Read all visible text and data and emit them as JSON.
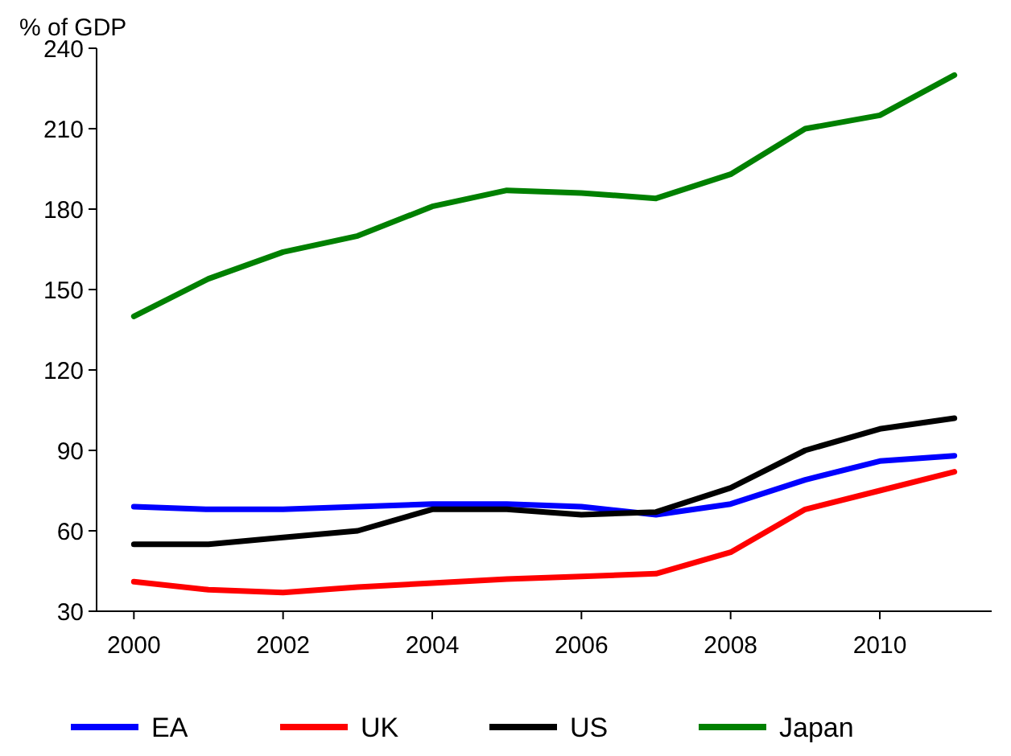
{
  "chart_data": {
    "type": "line",
    "ylabel": "% of GDP",
    "x": [
      2000,
      2001,
      2002,
      2003,
      2004,
      2005,
      2006,
      2007,
      2008,
      2009,
      2010,
      2011
    ],
    "xlim": [
      1999.5,
      2011.5
    ],
    "xticks": [
      2000,
      2002,
      2004,
      2006,
      2008,
      2010
    ],
    "ylim": [
      30,
      240
    ],
    "yticks": [
      30,
      60,
      90,
      120,
      150,
      180,
      210,
      240
    ],
    "legend": "bottom",
    "grid": false,
    "line_style": "solid",
    "marker": "none",
    "series": [
      {
        "name": "EA",
        "color": "#0000ff",
        "values": [
          69,
          68,
          68,
          69,
          70,
          70,
          69,
          66,
          70,
          79,
          86,
          88
        ]
      },
      {
        "name": "UK",
        "color": "#ff0000",
        "values": [
          41,
          38,
          37,
          39,
          40.5,
          42,
          43,
          44,
          52,
          68,
          75,
          82
        ]
      },
      {
        "name": "US",
        "color": "#000000",
        "values": [
          55,
          55,
          57.5,
          60,
          68,
          68,
          66,
          67,
          76,
          90,
          98,
          102
        ]
      },
      {
        "name": "Japan",
        "color": "#008000",
        "values": [
          140,
          154,
          164,
          170,
          181,
          187,
          186,
          184,
          193,
          210,
          215,
          230
        ]
      }
    ]
  }
}
